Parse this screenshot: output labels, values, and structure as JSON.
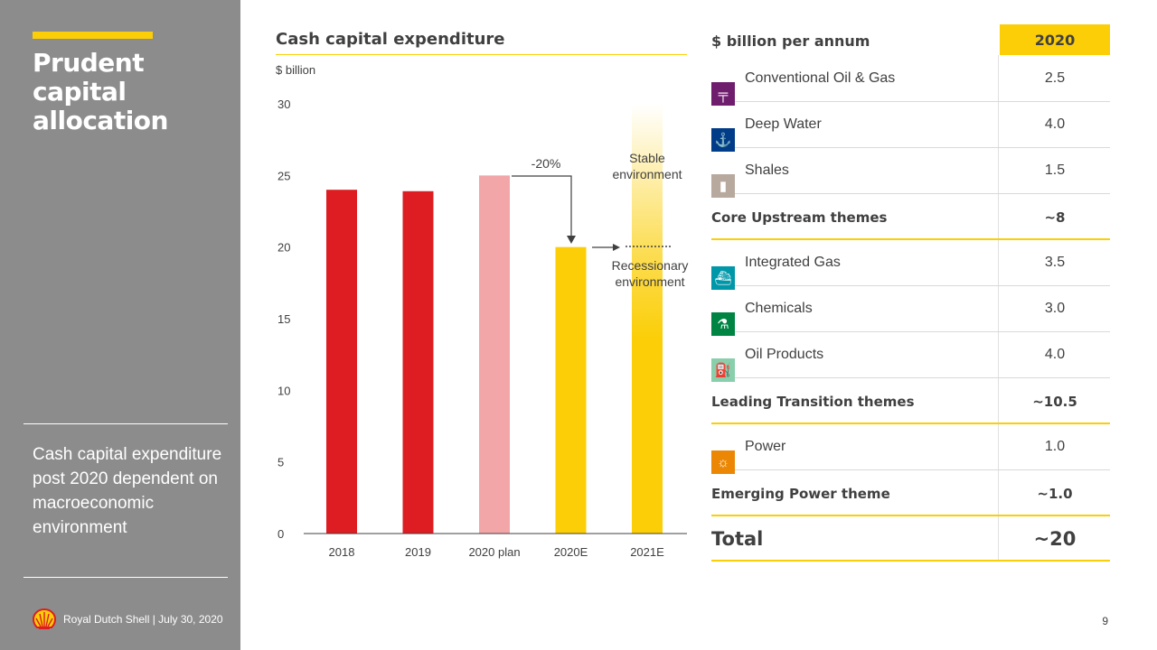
{
  "sidebar": {
    "title": "Prudent capital allocation",
    "note": "Cash capital expenditure post 2020 dependent on macroeconomic environment",
    "footer": "Royal Dutch Shell | July 30, 2020"
  },
  "page_number": "9",
  "colors": {
    "red": "#dd1d21",
    "pink": "#f2a6a8",
    "yellow": "#fbce07",
    "grey": "#8c8c8c"
  },
  "chart_data": {
    "type": "bar",
    "title": "Cash capital expenditure",
    "ylabel": "$ billion",
    "categories": [
      "2018",
      "2019",
      "2020 plan",
      "2020E",
      "2021E"
    ],
    "values": [
      24,
      23.9,
      25,
      20,
      30
    ],
    "bar_colors": [
      "#dd1d21",
      "#dd1d21",
      "#f2a6a8",
      "#fbce07",
      "#fbce07"
    ],
    "ylim": [
      0,
      30
    ],
    "yticks": [
      0,
      5,
      10,
      15,
      20,
      25,
      30
    ],
    "annotations": {
      "change": "-20%",
      "stable": [
        "Stable",
        "environment"
      ],
      "recession": [
        "Recessionary",
        "environment"
      ]
    }
  },
  "table": {
    "header": "$ billion per annum",
    "year": "2020",
    "rows": [
      {
        "type": "sub",
        "label": "Conventional Oil & Gas",
        "value": "2.5",
        "icon": "oil-rig-icon",
        "color": "#6f1e6e"
      },
      {
        "type": "sub",
        "label": "Deep Water",
        "value": "4.0",
        "icon": "deep-water-icon",
        "color": "#003c88"
      },
      {
        "type": "sub",
        "label": "Shales",
        "value": "1.5",
        "icon": "shale-rig-icon",
        "color": "#b8a99e"
      },
      {
        "type": "total",
        "label": "Core Upstream themes",
        "value": "~8"
      },
      {
        "type": "sub",
        "label": "Integrated Gas",
        "value": "3.5",
        "icon": "lng-ship-icon",
        "color": "#0097a9"
      },
      {
        "type": "sub",
        "label": "Chemicals",
        "value": "3.0",
        "icon": "flask-icon",
        "color": "#008443"
      },
      {
        "type": "sub",
        "label": "Oil Products",
        "value": "4.0",
        "icon": "fuel-pump-icon",
        "color": "#89cfac"
      },
      {
        "type": "total",
        "label": "Leading Transition themes",
        "value": "~10.5"
      },
      {
        "type": "sub",
        "label": "Power",
        "value": "1.0",
        "icon": "sun-icon",
        "color": "#eb8705"
      },
      {
        "type": "total",
        "label": "Emerging Power theme",
        "value": "~1.0"
      },
      {
        "type": "grand",
        "label": "Total",
        "value": "~20"
      }
    ]
  }
}
